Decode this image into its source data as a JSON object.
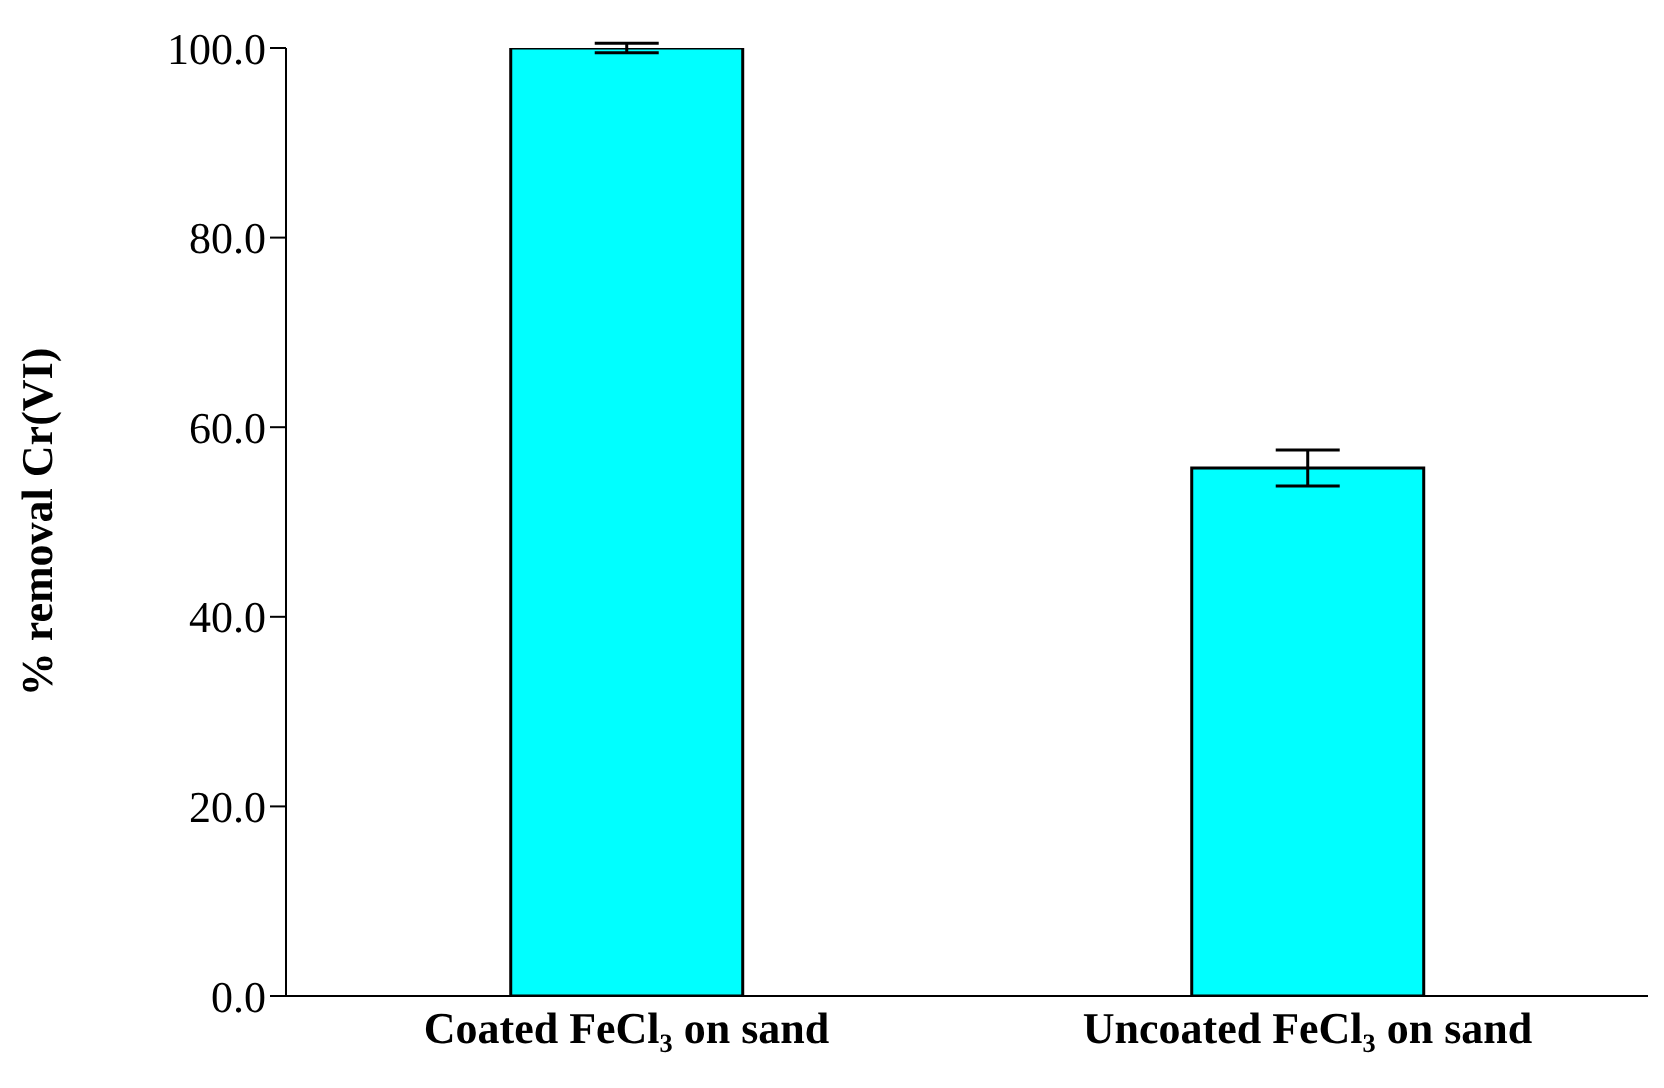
{
  "chart_data": {
    "type": "bar",
    "ylabel": "% removal Cr(VI)",
    "categories": [
      "Coated  FeCl₃ on sand",
      "Uncoated  FeCl₃ on sand"
    ],
    "values": [
      100.0,
      55.7
    ],
    "errors": [
      0.5,
      1.9
    ],
    "color": "#00ffff",
    "ylim": [
      0,
      100
    ],
    "yticks": [
      {
        "value": 0,
        "label": "0.0"
      },
      {
        "value": 20,
        "label": "20.0"
      },
      {
        "value": 40,
        "label": "40.0"
      },
      {
        "value": 60,
        "label": "60.0"
      },
      {
        "value": 80,
        "label": "80.0"
      },
      {
        "value": 100,
        "label": "100.0"
      }
    ],
    "grid": false,
    "legend": false
  }
}
